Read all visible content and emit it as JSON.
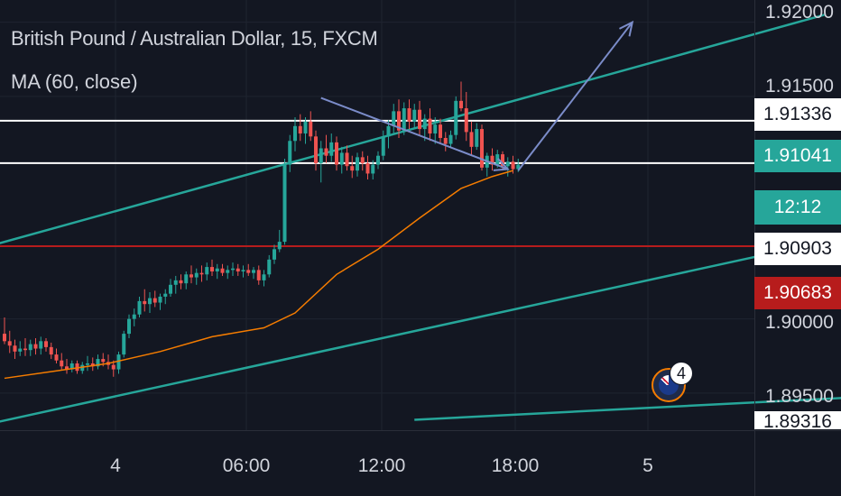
{
  "header": {
    "title": "British Pound / Australian Dollar, 15, FXCM",
    "indicator": "MA (60, close)"
  },
  "colors": {
    "background": "#131722",
    "up": "#26a69a",
    "down": "#ef5350",
    "ma": "#f57c00",
    "channel": "#26a69a",
    "level": "#ffffff",
    "red_level": "#b71c1c",
    "arrow": "#7b8cc9"
  },
  "price_axis": {
    "ticks": [
      "1.92000",
      "1.91500",
      "1.90000",
      "1.89500",
      "1.89316"
    ],
    "tick_values": [
      1.92,
      1.915,
      1.9,
      1.895,
      1.89316
    ],
    "marker_1": "1.91336",
    "marker_current": "1.91041",
    "countdown": "12:12",
    "marker_3": "1.90903",
    "marker_red": "1.90683"
  },
  "time_axis": {
    "labels": [
      "4",
      "06:00",
      "12:00",
      "18:00",
      "5"
    ]
  },
  "event_badge": {
    "icon": "australia-flag-icon",
    "count": "4"
  },
  "chart_data": {
    "type": "candlestick",
    "title": "British Pound / Australian Dollar, 15, FXCM",
    "interval": "15",
    "yrange": [
      1.8925,
      1.9215
    ],
    "horizontal_levels": [
      1.91336,
      1.9105,
      1.9049
    ],
    "current_price": 1.91041,
    "candles": [
      [
        1.899,
        1.9001,
        1.8983,
        1.8985
      ],
      [
        1.8985,
        1.8992,
        1.8977,
        1.8982
      ],
      [
        1.8982,
        1.8986,
        1.8973,
        1.8978
      ],
      [
        1.8978,
        1.8985,
        1.8975,
        1.898
      ],
      [
        1.898,
        1.8987,
        1.8975,
        1.8979
      ],
      [
        1.8979,
        1.8986,
        1.8975,
        1.8983
      ],
      [
        1.8983,
        1.8987,
        1.8976,
        1.898
      ],
      [
        1.898,
        1.8988,
        1.8976,
        1.8985
      ],
      [
        1.8985,
        1.8987,
        1.8978,
        1.8981
      ],
      [
        1.8981,
        1.8984,
        1.8973,
        1.8976
      ],
      [
        1.8976,
        1.898,
        1.897,
        1.8972
      ],
      [
        1.8972,
        1.8977,
        1.8966,
        1.8968
      ],
      [
        1.8968,
        1.8973,
        1.8963,
        1.8966
      ],
      [
        1.8966,
        1.8972,
        1.8964,
        1.897
      ],
      [
        1.897,
        1.8972,
        1.8963,
        1.8965
      ],
      [
        1.8965,
        1.8971,
        1.8963,
        1.8969
      ],
      [
        1.8969,
        1.8975,
        1.8965,
        1.897
      ],
      [
        1.897,
        1.8974,
        1.8965,
        1.8968
      ],
      [
        1.8968,
        1.8976,
        1.8966,
        1.8973
      ],
      [
        1.8973,
        1.8977,
        1.8968,
        1.8971
      ],
      [
        1.8971,
        1.8976,
        1.8966,
        1.8969
      ],
      [
        1.8969,
        1.8972,
        1.8961,
        1.8966
      ],
      [
        1.8966,
        1.8978,
        1.8963,
        1.8976
      ],
      [
        1.8976,
        1.8992,
        1.8974,
        1.899
      ],
      [
        1.899,
        1.9003,
        1.8987,
        1.9
      ],
      [
        1.9,
        1.9007,
        1.8995,
        1.9003
      ],
      [
        1.9003,
        1.9015,
        1.9001,
        1.9012
      ],
      [
        1.9012,
        1.902,
        1.9005,
        1.901
      ],
      [
        1.901,
        1.9018,
        1.9004,
        1.9014
      ],
      [
        1.9014,
        1.9019,
        1.9008,
        1.9011
      ],
      [
        1.9011,
        1.9017,
        1.9006,
        1.9015
      ],
      [
        1.9015,
        1.902,
        1.901,
        1.9017
      ],
      [
        1.9017,
        1.9027,
        1.9015,
        1.9023
      ],
      [
        1.9023,
        1.9029,
        1.9017,
        1.9026
      ],
      [
        1.9026,
        1.903,
        1.902,
        1.9024
      ],
      [
        1.9024,
        1.9032,
        1.902,
        1.903
      ],
      [
        1.903,
        1.9036,
        1.9024,
        1.9028
      ],
      [
        1.9028,
        1.9034,
        1.9023,
        1.9031
      ],
      [
        1.9031,
        1.9036,
        1.9025,
        1.903
      ],
      [
        1.903,
        1.9038,
        1.9026,
        1.9035
      ],
      [
        1.9035,
        1.904,
        1.9029,
        1.9032
      ],
      [
        1.9032,
        1.9037,
        1.9027,
        1.9034
      ],
      [
        1.9034,
        1.9037,
        1.9029,
        1.9031
      ],
      [
        1.9031,
        1.9036,
        1.9027,
        1.9033
      ],
      [
        1.9033,
        1.9038,
        1.9029,
        1.9034
      ],
      [
        1.9034,
        1.9037,
        1.9029,
        1.9032
      ],
      [
        1.9032,
        1.9036,
        1.9028,
        1.9033
      ],
      [
        1.9033,
        1.9037,
        1.9029,
        1.9031
      ],
      [
        1.9031,
        1.9035,
        1.9027,
        1.9033
      ],
      [
        1.9033,
        1.9036,
        1.9023,
        1.9026
      ],
      [
        1.9026,
        1.9033,
        1.9022,
        1.903
      ],
      [
        1.903,
        1.9043,
        1.9028,
        1.904
      ],
      [
        1.904,
        1.905,
        1.9037,
        1.9047
      ],
      [
        1.9047,
        1.906,
        1.9045,
        1.9052
      ],
      [
        1.9052,
        1.9108,
        1.905,
        1.9104
      ],
      [
        1.9104,
        1.9124,
        1.9099,
        1.912
      ],
      [
        1.912,
        1.9136,
        1.9113,
        1.913
      ],
      [
        1.913,
        1.9138,
        1.912,
        1.9125
      ],
      [
        1.9125,
        1.9136,
        1.9118,
        1.9133
      ],
      [
        1.9133,
        1.914,
        1.912,
        1.9123
      ],
      [
        1.9123,
        1.9127,
        1.91,
        1.9105
      ],
      [
        1.9105,
        1.912,
        1.9092,
        1.9115
      ],
      [
        1.9115,
        1.9124,
        1.9105,
        1.911
      ],
      [
        1.911,
        1.9125,
        1.9106,
        1.9119
      ],
      [
        1.9119,
        1.9123,
        1.91,
        1.9104
      ],
      [
        1.9104,
        1.9116,
        1.9098,
        1.9112
      ],
      [
        1.9112,
        1.9117,
        1.91,
        1.9103
      ],
      [
        1.9103,
        1.911,
        1.9095,
        1.91
      ],
      [
        1.91,
        1.9112,
        1.9096,
        1.9109
      ],
      [
        1.9109,
        1.9113,
        1.91,
        1.9105
      ],
      [
        1.9105,
        1.911,
        1.9094,
        1.9098
      ],
      [
        1.9098,
        1.9107,
        1.9094,
        1.9104
      ],
      [
        1.9104,
        1.9113,
        1.9101,
        1.911
      ],
      [
        1.911,
        1.9127,
        1.9107,
        1.9123
      ],
      [
        1.9123,
        1.9134,
        1.9115,
        1.913
      ],
      [
        1.913,
        1.9145,
        1.9125,
        1.914
      ],
      [
        1.914,
        1.9148,
        1.9122,
        1.9127
      ],
      [
        1.9127,
        1.9146,
        1.9124,
        1.9142
      ],
      [
        1.9142,
        1.9148,
        1.9128,
        1.9133
      ],
      [
        1.9133,
        1.9145,
        1.9128,
        1.9141
      ],
      [
        1.9141,
        1.9147,
        1.9124,
        1.9128
      ],
      [
        1.9128,
        1.9138,
        1.912,
        1.9135
      ],
      [
        1.9135,
        1.9142,
        1.912,
        1.9125
      ],
      [
        1.9125,
        1.9136,
        1.9118,
        1.9131
      ],
      [
        1.9131,
        1.9135,
        1.9118,
        1.9122
      ],
      [
        1.9122,
        1.9126,
        1.9113,
        1.9118
      ],
      [
        1.9118,
        1.9127,
        1.9115,
        1.9124
      ],
      [
        1.9124,
        1.915,
        1.9121,
        1.9147
      ],
      [
        1.9147,
        1.916,
        1.914,
        1.9142
      ],
      [
        1.9142,
        1.9153,
        1.912,
        1.9126
      ],
      [
        1.9126,
        1.9133,
        1.911,
        1.9116
      ],
      [
        1.9116,
        1.9132,
        1.9114,
        1.9128
      ],
      [
        1.9128,
        1.9131,
        1.91,
        1.9102
      ],
      [
        1.9102,
        1.9112,
        1.9096,
        1.911
      ],
      [
        1.911,
        1.9115,
        1.91,
        1.9104
      ],
      [
        1.9104,
        1.9114,
        1.9102,
        1.9111
      ],
      [
        1.9111,
        1.9113,
        1.91,
        1.9103
      ],
      [
        1.9103,
        1.9109,
        1.9096,
        1.9106
      ],
      [
        1.9106,
        1.911,
        1.9098,
        1.9101
      ],
      [
        1.9101,
        1.9108,
        1.9099,
        1.9104
      ]
    ],
    "ma60": [
      [
        0,
        1.896
      ],
      [
        10,
        1.8965
      ],
      [
        20,
        1.897
      ],
      [
        30,
        1.8978
      ],
      [
        40,
        1.8988
      ],
      [
        50,
        1.8994
      ],
      [
        56,
        1.9004
      ],
      [
        64,
        1.903
      ],
      [
        72,
        1.9047
      ],
      [
        80,
        1.9068
      ],
      [
        88,
        1.9088
      ],
      [
        94,
        1.9096
      ],
      [
        98,
        1.91
      ]
    ],
    "channel_lines": [
      {
        "from": [
          -2,
          1.905
        ],
        "to": [
          158,
          1.9205
        ]
      },
      {
        "from": [
          -2,
          1.893
        ],
        "to": [
          158,
          1.9052
        ]
      },
      {
        "from": [
          79,
          1.8932
        ],
        "to": [
          180,
          1.895
        ]
      },
      {
        "from": [
          150,
          1.9133
        ],
        "to": [
          236,
          1.9148
        ]
      }
    ],
    "arrows": [
      {
        "from": [
          61,
          1.9149
        ],
        "to": [
          97,
          1.9101
        ]
      },
      {
        "from": [
          99,
          1.91
        ],
        "to": [
          121,
          1.92
        ]
      }
    ]
  }
}
